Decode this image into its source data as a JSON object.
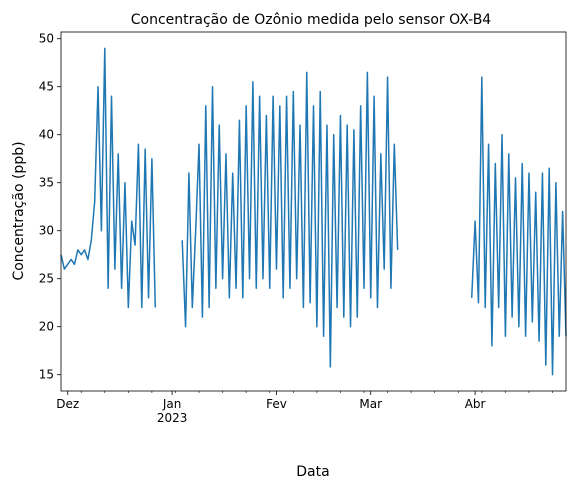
{
  "chart_data": {
    "type": "line",
    "title": "Concentração de Ozônio medida pelo sensor OX-B4",
    "xlabel": "Data",
    "ylabel": "Concentração (ppb)",
    "xlim": [
      "2022-11-29",
      "2023-04-28"
    ],
    "ylim": [
      13.3,
      50.7
    ],
    "grid": false,
    "line_color": "#1f77b4",
    "y_ticks": [
      15,
      20,
      25,
      30,
      35,
      40,
      45,
      50
    ],
    "x_ticks": [
      {
        "date": "2022-12-01",
        "label": "Dez",
        "sublabel": ""
      },
      {
        "date": "2023-01-01",
        "label": "Jan",
        "sublabel": "2023"
      },
      {
        "date": "2023-02-01",
        "label": "Fev",
        "sublabel": ""
      },
      {
        "date": "2023-03-01",
        "label": "Mar",
        "sublabel": ""
      },
      {
        "date": "2023-04-01",
        "label": "Abr",
        "sublabel": ""
      }
    ],
    "series": [
      {
        "segments": [
          {
            "x": [
              "2022-11-29",
              "2022-11-30",
              "2022-12-01",
              "2022-12-02",
              "2022-12-03",
              "2022-12-04",
              "2022-12-05",
              "2022-12-06",
              "2022-12-07",
              "2022-12-08",
              "2022-12-09",
              "2022-12-10",
              "2022-12-11",
              "2022-12-12",
              "2022-12-13",
              "2022-12-14",
              "2022-12-15",
              "2022-12-16",
              "2022-12-17",
              "2022-12-18",
              "2022-12-19",
              "2022-12-20",
              "2022-12-21",
              "2022-12-22",
              "2022-12-23",
              "2022-12-24",
              "2022-12-25",
              "2022-12-26",
              "2022-12-27"
            ],
            "y": [
              27.5,
              26.0,
              26.5,
              27.0,
              26.5,
              28.0,
              27.5,
              28.0,
              27.0,
              29.0,
              33.0,
              45.0,
              30.0,
              49.0,
              24.0,
              44.0,
              26.0,
              38.0,
              24.0,
              35.0,
              22.0,
              31.0,
              28.5,
              39.0,
              22.0,
              38.5,
              23.0,
              37.5,
              22.0
            ]
          },
          {
            "x": [
              "2023-01-04",
              "2023-01-05",
              "2023-01-06",
              "2023-01-07",
              "2023-01-08",
              "2023-01-09",
              "2023-01-10",
              "2023-01-11",
              "2023-01-12",
              "2023-01-13",
              "2023-01-14",
              "2023-01-15",
              "2023-01-16",
              "2023-01-17",
              "2023-01-18",
              "2023-01-19",
              "2023-01-20",
              "2023-01-21",
              "2023-01-22",
              "2023-01-23",
              "2023-01-24",
              "2023-01-25",
              "2023-01-26",
              "2023-01-27",
              "2023-01-28",
              "2023-01-29",
              "2023-01-30",
              "2023-01-31",
              "2023-02-01",
              "2023-02-02",
              "2023-02-03",
              "2023-02-04",
              "2023-02-05",
              "2023-02-06",
              "2023-02-07",
              "2023-02-08",
              "2023-02-09",
              "2023-02-10",
              "2023-02-11",
              "2023-02-12",
              "2023-02-13",
              "2023-02-14",
              "2023-02-15",
              "2023-02-16",
              "2023-02-17",
              "2023-02-18",
              "2023-02-19",
              "2023-02-20",
              "2023-02-21",
              "2023-02-22",
              "2023-02-23",
              "2023-02-24",
              "2023-02-25",
              "2023-02-26",
              "2023-02-27",
              "2023-02-28",
              "2023-03-01",
              "2023-03-02",
              "2023-03-03",
              "2023-03-04",
              "2023-03-05",
              "2023-03-06",
              "2023-03-07",
              "2023-03-08",
              "2023-03-09"
            ],
            "y": [
              29.0,
              20.0,
              36.0,
              22.0,
              30.0,
              39.0,
              21.0,
              43.0,
              22.0,
              45.0,
              24.0,
              41.0,
              25.0,
              38.0,
              23.0,
              36.0,
              24.0,
              41.5,
              23.0,
              43.0,
              25.0,
              45.5,
              24.0,
              44.0,
              25.0,
              42.0,
              24.0,
              44.0,
              26.0,
              43.0,
              23.0,
              44.0,
              24.0,
              44.5,
              25.0,
              41.0,
              22.0,
              46.5,
              22.5,
              43.0,
              20.0,
              44.5,
              19.0,
              41.0,
              15.8,
              40.0,
              22.0,
              42.0,
              21.0,
              41.0,
              20.0,
              40.5,
              21.0,
              43.0,
              24.0,
              46.5,
              23.0,
              44.0,
              22.0,
              38.0,
              26.0,
              46.0,
              24.0,
              39.0,
              28.0
            ]
          },
          {
            "x": [
              "2023-03-31",
              "2023-04-01",
              "2023-04-02",
              "2023-04-03",
              "2023-04-04",
              "2023-04-05",
              "2023-04-06",
              "2023-04-07",
              "2023-04-08",
              "2023-04-09",
              "2023-04-10",
              "2023-04-11",
              "2023-04-12",
              "2023-04-13",
              "2023-04-14",
              "2023-04-15",
              "2023-04-16",
              "2023-04-17",
              "2023-04-18",
              "2023-04-19",
              "2023-04-20",
              "2023-04-21",
              "2023-04-22",
              "2023-04-23",
              "2023-04-24",
              "2023-04-25",
              "2023-04-26",
              "2023-04-27",
              "2023-04-28"
            ],
            "y": [
              23.0,
              31.0,
              22.5,
              46.0,
              22.0,
              39.0,
              18.0,
              37.0,
              22.0,
              40.0,
              19.0,
              38.0,
              21.0,
              35.5,
              20.0,
              37.0,
              19.0,
              36.0,
              20.5,
              34.0,
              18.5,
              36.0,
              16.0,
              36.5,
              15.0,
              35.0,
              19.0,
              32.0,
              19.0
            ]
          }
        ]
      }
    ]
  }
}
